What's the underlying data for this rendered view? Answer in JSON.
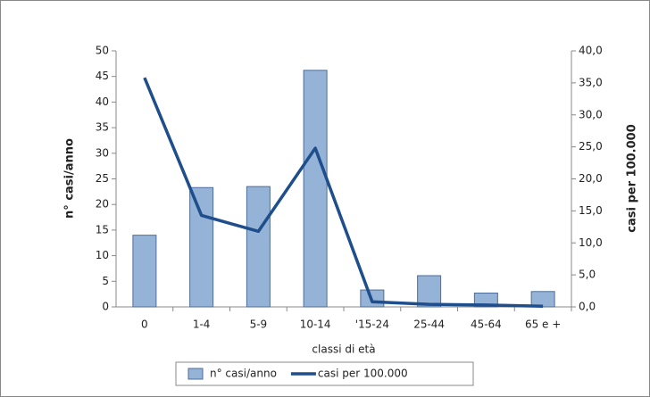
{
  "chart_data": {
    "type": "bar-line",
    "x_label": "classi di età",
    "y_label": "n° casi/anno",
    "y2_label": "casi per 100.000",
    "categories": [
      "0",
      "1-4",
      "5-9",
      "10-14",
      "'15-24",
      "25-44",
      "45-64",
      "65 e +"
    ],
    "series": [
      {
        "name": "n° casi/anno",
        "type": "bar",
        "color": "#95b3d7",
        "values": [
          14,
          23.3,
          23.5,
          46.2,
          3.3,
          6.1,
          2.7,
          3.0
        ]
      },
      {
        "name": "casi per 100.000",
        "type": "line",
        "axis": "y2",
        "color": "#1f4e8c",
        "values": [
          35.8,
          14.3,
          11.8,
          24.8,
          0.8,
          0.4,
          0.3,
          0.1
        ]
      }
    ],
    "ylim": [
      0,
      50
    ],
    "yticks": [
      0,
      5,
      10,
      15,
      20,
      25,
      30,
      35,
      40,
      45,
      50
    ],
    "y2lim": [
      0,
      40
    ],
    "y2ticks": [
      {
        "value": 0,
        "label": "0,0"
      },
      {
        "value": 5,
        "label": "5,0"
      },
      {
        "value": 10,
        "label": "10,0"
      },
      {
        "value": 15,
        "label": "15,0"
      },
      {
        "value": 20,
        "label": "20,0"
      },
      {
        "value": 25,
        "label": "25,0"
      },
      {
        "value": 30,
        "label": "30,0"
      },
      {
        "value": 35,
        "label": "35,0"
      },
      {
        "value": 40,
        "label": "40,0"
      }
    ],
    "legend": "bottom"
  }
}
